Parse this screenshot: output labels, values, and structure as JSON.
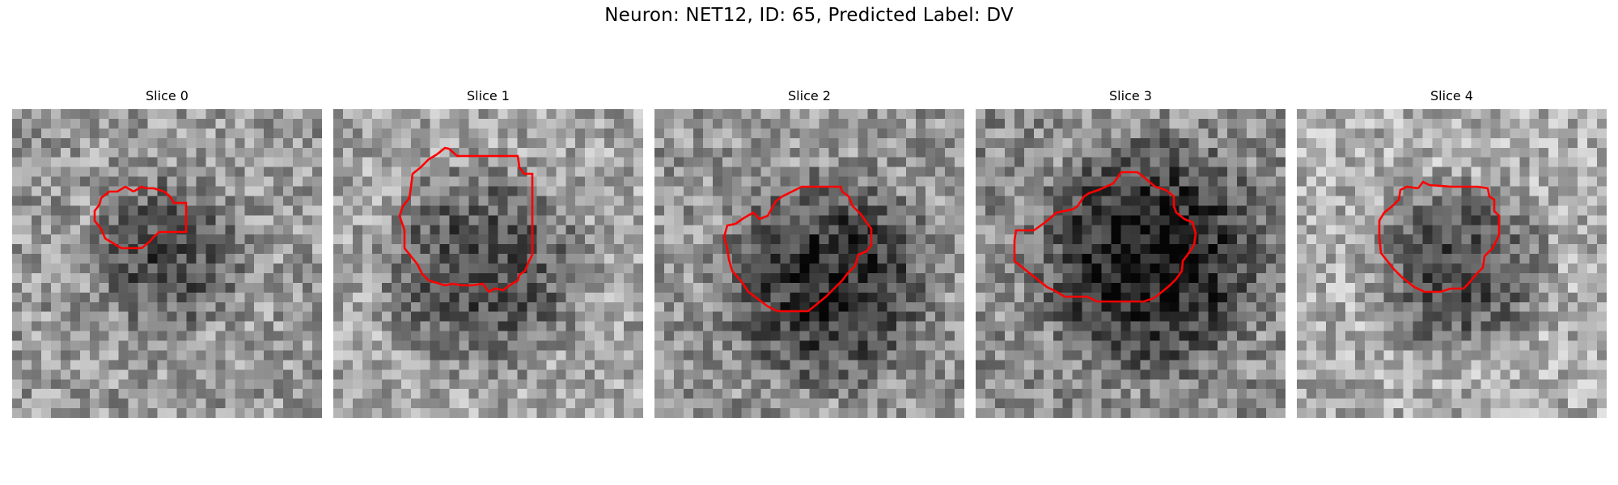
{
  "figure": {
    "title": "Neuron: NET12, ID: 65, Predicted Label: DV"
  },
  "slices": [
    {
      "label": "Slice 0"
    },
    {
      "label": "Slice 1"
    },
    {
      "label": "Slice 2"
    },
    {
      "label": "Slice 3"
    },
    {
      "label": "Slice 4"
    }
  ],
  "colors": {
    "contour": "#ff0000",
    "background": "#ffffff"
  }
}
